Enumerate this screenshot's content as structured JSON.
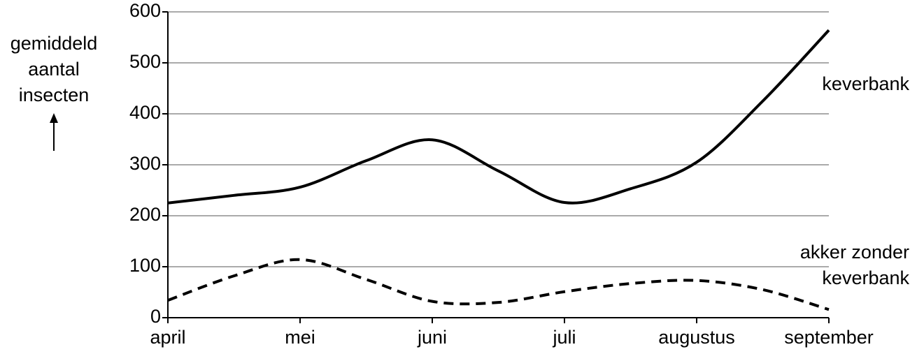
{
  "chart_data": {
    "type": "line",
    "y_label": "gemiddeld aantal insecten",
    "categories": [
      "april",
      null,
      "mei",
      null,
      "juni",
      null,
      "juli",
      null,
      "augustus",
      null,
      "september"
    ],
    "series": [
      {
        "name": "keverbank",
        "color": "#000000",
        "style": "solid",
        "values": [
          225,
          240,
          256,
          308,
          349,
          288,
          226,
          253,
          305,
          425,
          564
        ]
      },
      {
        "name": "akker zonder keverbank",
        "color": "#000000",
        "style": "dashed",
        "values": [
          34,
          82,
          114,
          75,
          32,
          30,
          51,
          67,
          73,
          55,
          16
        ]
      }
    ],
    "ylim": [
      0,
      600
    ],
    "yticks": [
      0,
      100,
      200,
      300,
      400,
      500,
      600
    ],
    "grid": true
  }
}
